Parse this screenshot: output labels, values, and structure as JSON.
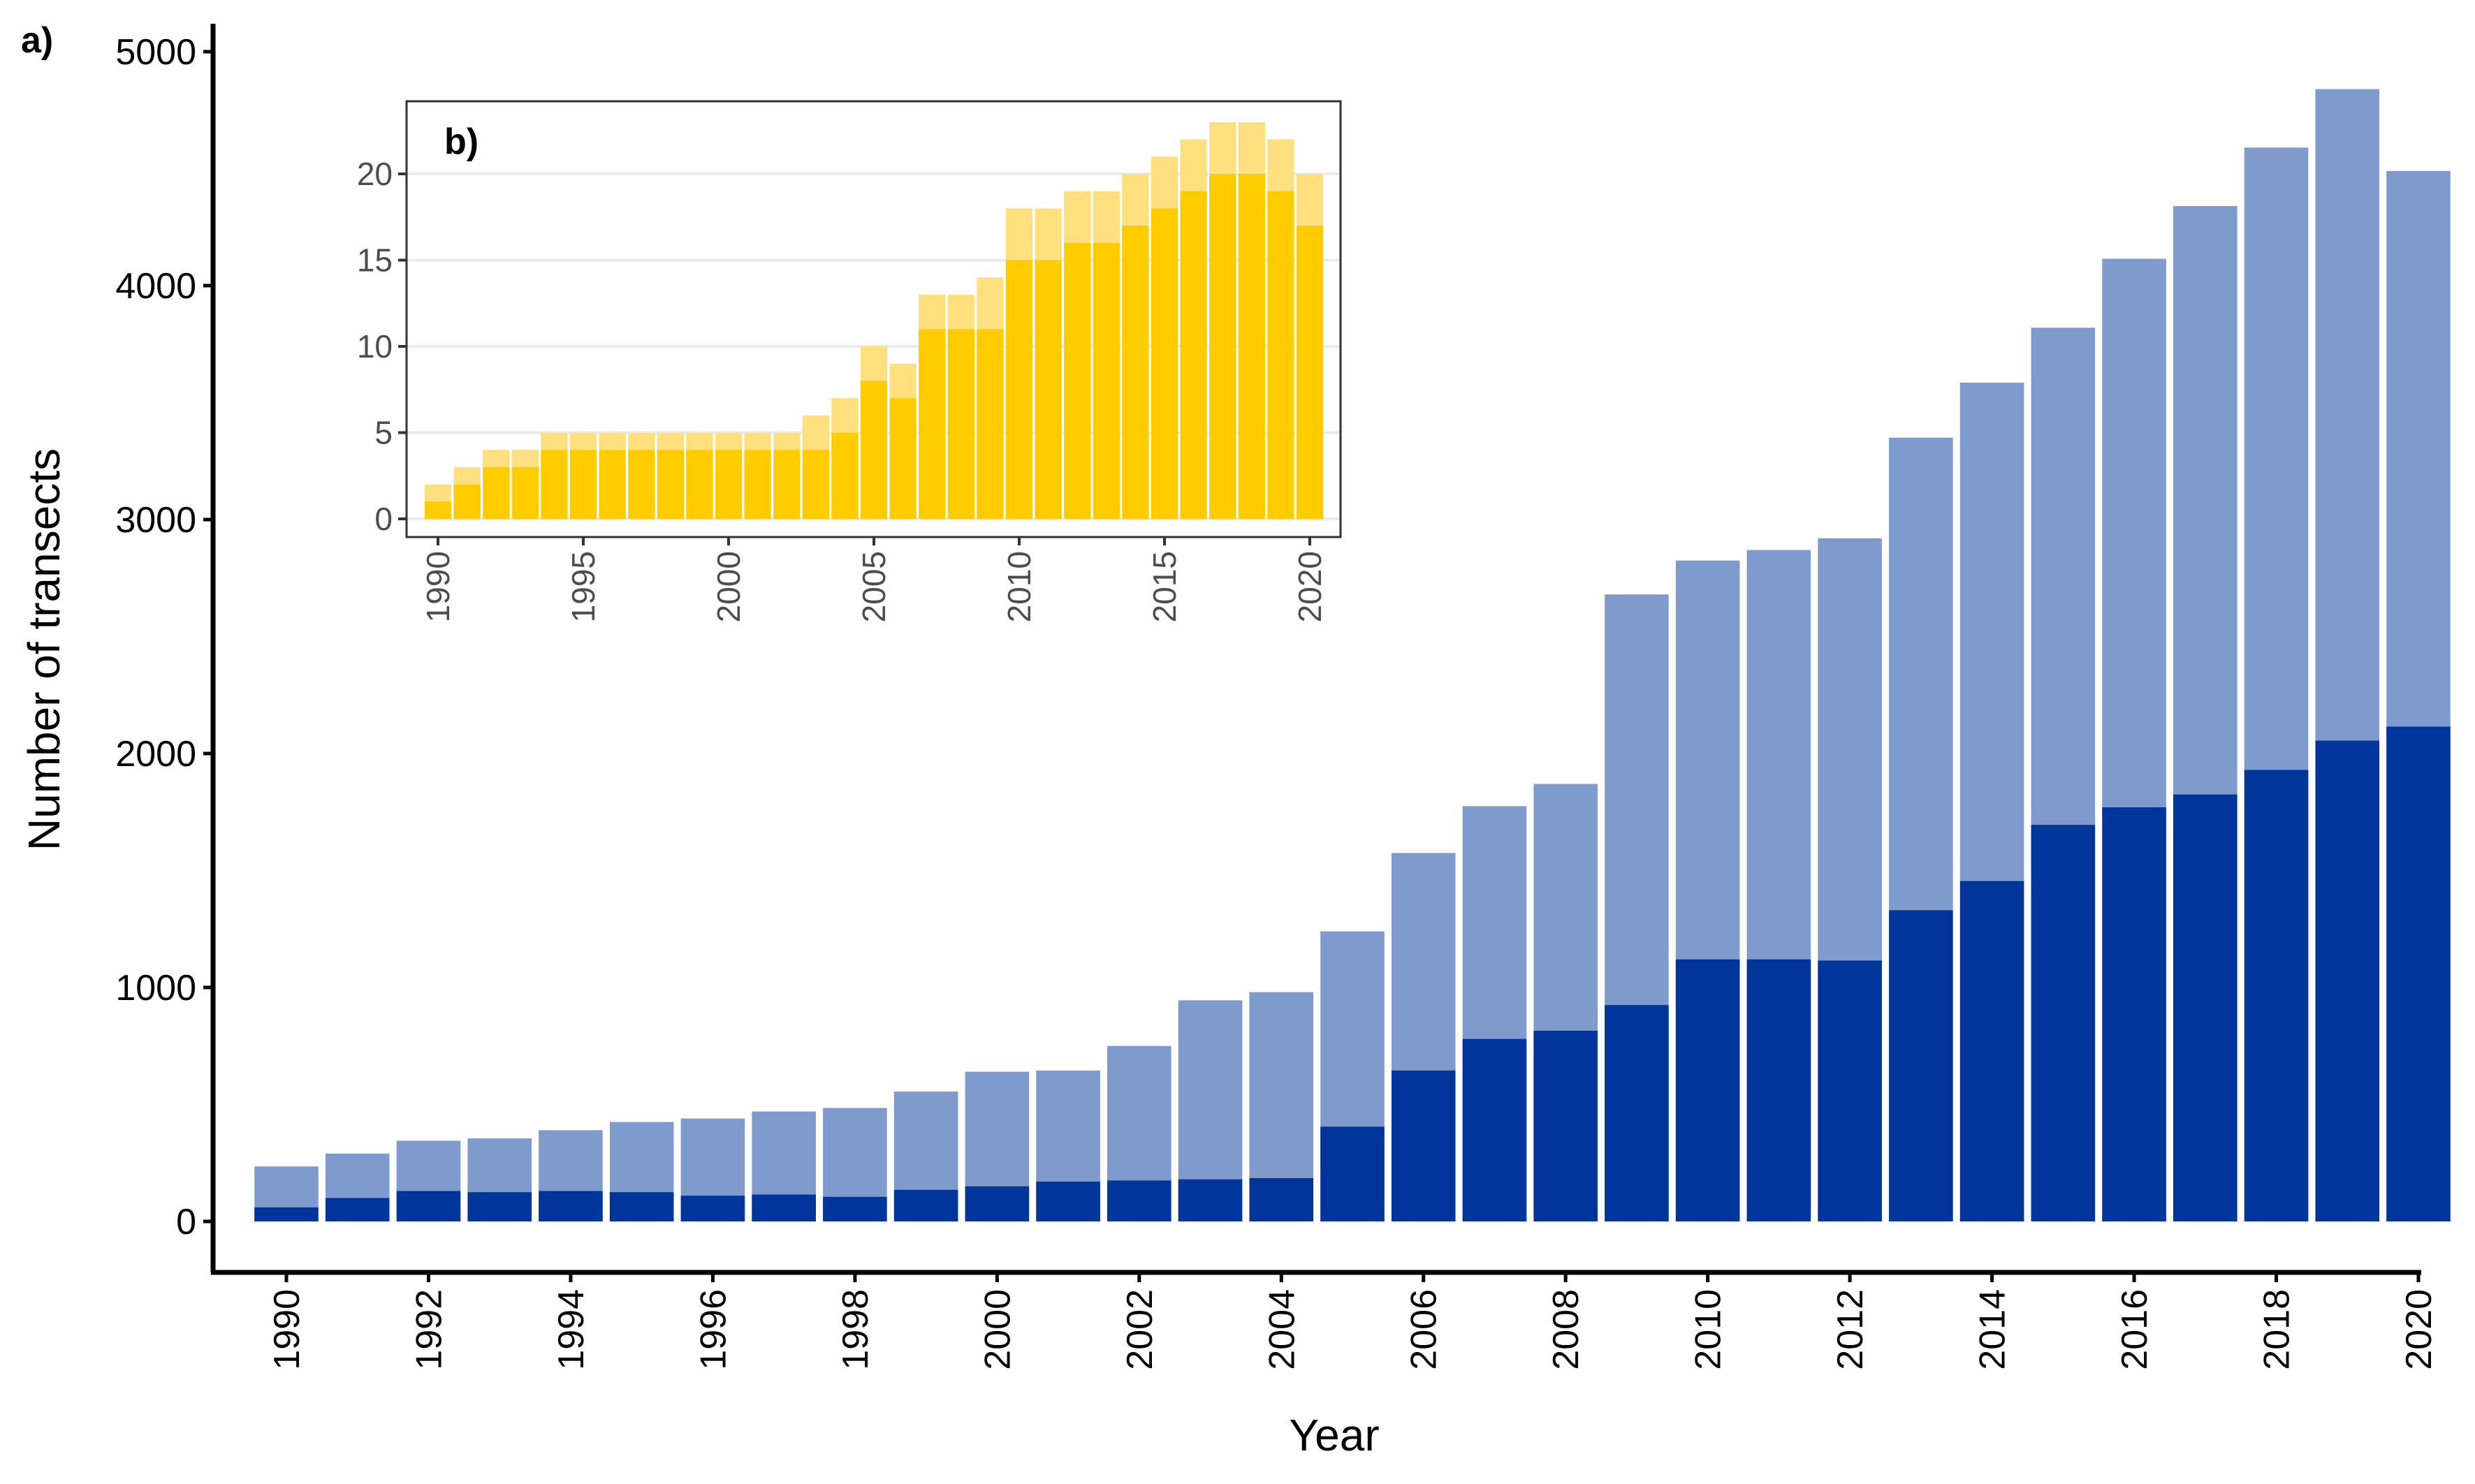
{
  "panel_labels": {
    "a": "a)",
    "b": "b)"
  },
  "colors": {
    "main_total": "#7f9acd",
    "main_subset": "#00369b",
    "inset_total": "#ffe07f",
    "inset_subset": "#ffcc00",
    "inset_grid": "#ebebeb"
  },
  "chart_data": [
    {
      "id": "a",
      "type": "bar",
      "stacked": "overlay",
      "xlabel": "Year",
      "ylabel": "Number of transects",
      "ylim": [
        0,
        5000
      ],
      "yticks": [
        0,
        1000,
        2000,
        3000,
        4000,
        5000
      ],
      "ytick_labels": [
        "0",
        "1000",
        "2000",
        "3000",
        "4000",
        "5000"
      ],
      "xtick_labels": [
        "1990",
        "1992",
        "1994",
        "1996",
        "1998",
        "2000",
        "2002",
        "2004",
        "2006",
        "2008",
        "2010",
        "2012",
        "2014",
        "2016",
        "2018",
        "2020"
      ],
      "grid": false,
      "legend": "none",
      "x": [
        1990,
        1991,
        1992,
        1993,
        1994,
        1995,
        1996,
        1997,
        1998,
        1999,
        2000,
        2001,
        2002,
        2003,
        2004,
        2005,
        2006,
        2007,
        2008,
        2009,
        2010,
        2011,
        2012,
        2013,
        2014,
        2015,
        2016,
        2017,
        2018,
        2019,
        2020
      ],
      "series": [
        {
          "values": [
            235,
            290,
            345,
            355,
            390,
            425,
            440,
            470,
            485,
            555,
            640,
            645,
            750,
            945,
            980,
            1240,
            1575,
            1775,
            1870,
            2680,
            2825,
            2870,
            2920,
            3350,
            3585,
            3820,
            4115,
            4340,
            4590,
            4840,
            4490
          ]
        },
        {
          "values": [
            60,
            100,
            130,
            125,
            130,
            125,
            110,
            115,
            105,
            135,
            150,
            170,
            175,
            180,
            185,
            405,
            645,
            780,
            815,
            925,
            1120,
            1120,
            1115,
            1330,
            1455,
            1695,
            1770,
            1825,
            1930,
            2055,
            2115
          ]
        }
      ]
    },
    {
      "id": "b",
      "type": "bar",
      "stacked": "overlay",
      "xlabel": "",
      "ylabel": "",
      "ylim": [
        -1.2,
        24.5
      ],
      "yticks": [
        0,
        5,
        10,
        15,
        20
      ],
      "ytick_labels": [
        "0",
        "5",
        "10",
        "15",
        "20"
      ],
      "xtick_labels": [
        "1990",
        "1995",
        "2000",
        "2005",
        "2010",
        "2015",
        "2020"
      ],
      "grid": true,
      "legend": "none",
      "x": [
        1990,
        1991,
        1992,
        1993,
        1994,
        1995,
        1996,
        1997,
        1998,
        1999,
        2000,
        2001,
        2002,
        2003,
        2004,
        2005,
        2006,
        2007,
        2008,
        2009,
        2010,
        2011,
        2012,
        2013,
        2014,
        2015,
        2016,
        2017,
        2018,
        2019,
        2020
      ],
      "series": [
        {
          "values": [
            2,
            3,
            4,
            4,
            5,
            5,
            5,
            5,
            5,
            5,
            5,
            5,
            5,
            6,
            7,
            10,
            9,
            13,
            13,
            14,
            18,
            18,
            19,
            19,
            20,
            21,
            22,
            23,
            23,
            22,
            20
          ]
        },
        {
          "values": [
            1,
            2,
            3,
            3,
            4,
            4,
            4,
            4,
            4,
            4,
            4,
            4,
            4,
            4,
            5,
            8,
            7,
            11,
            11,
            11,
            15,
            15,
            16,
            16,
            17,
            18,
            19,
            20,
            20,
            19,
            17
          ]
        }
      ]
    }
  ]
}
